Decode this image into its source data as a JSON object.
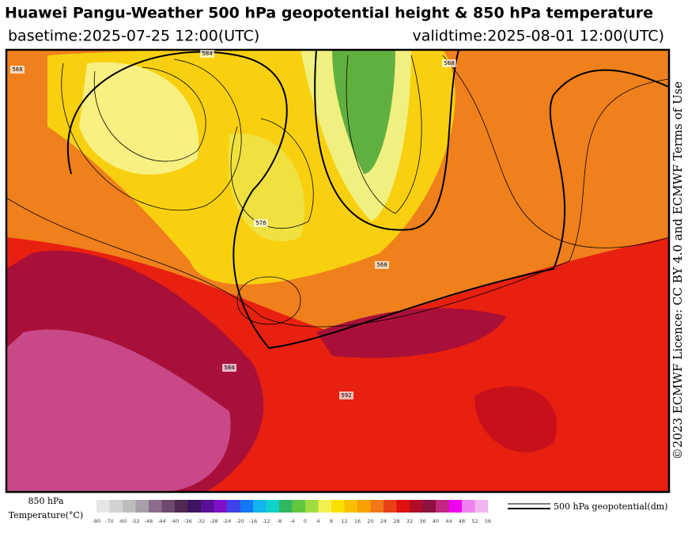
{
  "header": {
    "title": "Huawei Pangu-Weather 500 hPa geopotential height & 850 hPa temperature",
    "basetime": "basetime:2025-07-25 12:00(UTC)",
    "validtime": "validtime:2025-08-01 12:00(UTC)"
  },
  "license": "©2023 ECMWF Licence: CC BY 4.0 and ECMWF Terms of Use",
  "map": {
    "contour_labels": [
      "568",
      "584",
      "568",
      "576",
      "568",
      "584",
      "592"
    ]
  },
  "legend": {
    "temperature_label_1": "850 hPa",
    "temperature_label_2": "Temperature(°C)",
    "contour_label": "500 hPa geopotential(dm)",
    "colorbar": {
      "ticks": [
        -80,
        -70,
        -60,
        -52,
        -48,
        -44,
        -40,
        -36,
        -32,
        -28,
        -24,
        -20,
        -16,
        -12,
        -8,
        -4,
        0,
        4,
        8,
        12,
        16,
        20,
        24,
        28,
        32,
        36,
        40,
        44,
        48,
        52,
        56
      ],
      "colors": [
        "#e6e6e6",
        "#d2d2d2",
        "#bdbdbd",
        "#a8a0a8",
        "#8c6c8c",
        "#6e4a6e",
        "#502850",
        "#3c1460",
        "#5a1096",
        "#8010c8",
        "#4040e8",
        "#1478f0",
        "#10b4f0",
        "#10d2c8",
        "#30b860",
        "#60c840",
        "#a0dc40",
        "#f0f050",
        "#f8e000",
        "#f8c000",
        "#f8a000",
        "#f07818",
        "#e84018",
        "#e01010",
        "#b00c28",
        "#8c1040",
        "#c02880",
        "#f000f0",
        "#f080f0",
        "#f0b4f0"
      ]
    }
  }
}
